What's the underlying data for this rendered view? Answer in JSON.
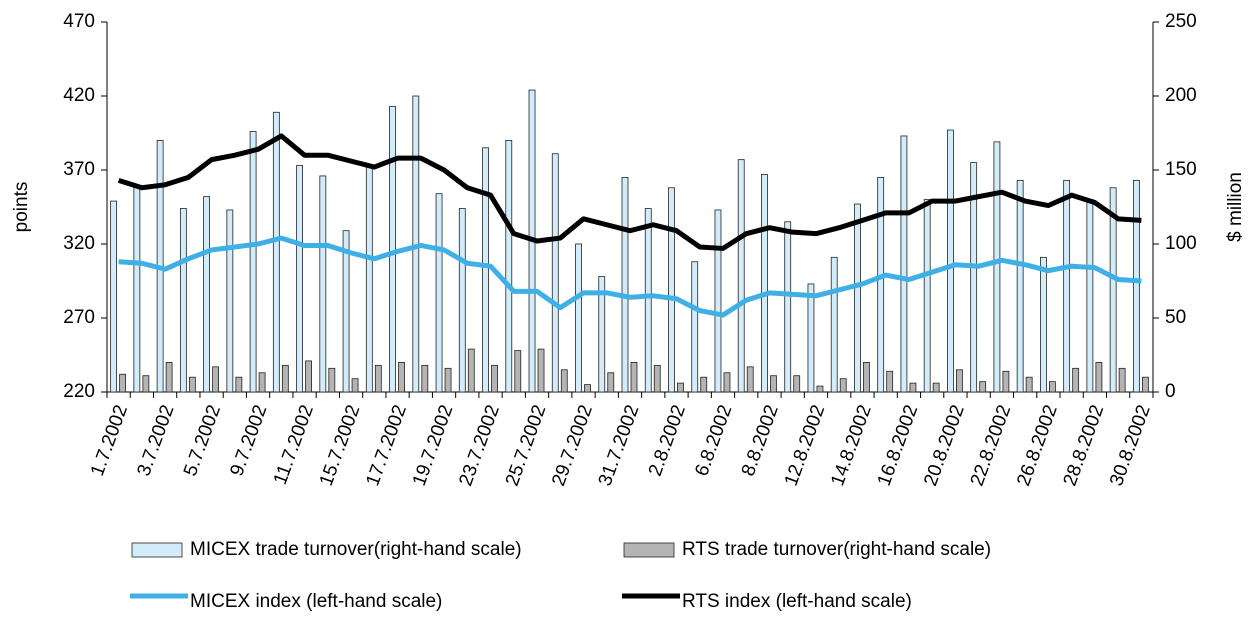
{
  "chart_data": {
    "type": "bar",
    "y_label": "points",
    "y2_label": "$ million",
    "categories": [
      "1.7.2002",
      null,
      "3.7.2002",
      null,
      "5.7.2002",
      null,
      "9.7.2002",
      null,
      "11.7.2002",
      null,
      "15.7.2002",
      null,
      "17.7.2002",
      null,
      "19.7.2002",
      null,
      "23.7.2002",
      null,
      "25.7.2002",
      null,
      "29.7.2002",
      null,
      "31.7.2002",
      null,
      "2.8.2002",
      null,
      "6.8.2002",
      null,
      "8.8.2002",
      null,
      "12.8.2002",
      null,
      "14.8.2002",
      null,
      "16.8.2002",
      null,
      "20.8.2002",
      null,
      "22.8.2002",
      null,
      "26.8.2002",
      null,
      "28.8.2002",
      null,
      "30.8.2002"
    ],
    "ylim": [
      220,
      470
    ],
    "yticks": [
      220,
      270,
      320,
      370,
      420,
      470
    ],
    "y2lim": [
      0,
      250
    ],
    "y2ticks": [
      0,
      50,
      100,
      150,
      200,
      250
    ],
    "series": [
      {
        "name": "MICEX trade turnover(right-hand scale)",
        "type": "bar",
        "axis": "y2",
        "color": "#d3ecfa",
        "values": [
          129,
          139,
          170,
          124,
          132,
          123,
          176,
          189,
          153,
          146,
          109,
          153,
          193,
          200,
          134,
          124,
          165,
          170,
          204,
          161,
          100,
          78,
          145,
          124,
          138,
          88,
          123,
          157,
          147,
          115,
          73,
          91,
          127,
          145,
          173,
          130,
          177,
          155,
          169,
          143,
          91,
          143,
          130,
          138,
          143
        ]
      },
      {
        "name": "RTS trade turnover(right-hand scale)",
        "type": "bar",
        "axis": "y2",
        "color": "#b4b4b4",
        "values": [
          12,
          11,
          20,
          10,
          17,
          10,
          13,
          18,
          21,
          16,
          9,
          18,
          20,
          18,
          16,
          29,
          18,
          28,
          29,
          15,
          5,
          13,
          20,
          18,
          6,
          10,
          13,
          17,
          11,
          11,
          4,
          9,
          20,
          14,
          6,
          6,
          15,
          7,
          14,
          10,
          7,
          16,
          20,
          16,
          10
        ]
      },
      {
        "name": "MICEX index (left-hand scale)",
        "type": "line",
        "color": "#3fb0e6",
        "values": [
          308,
          307,
          303,
          310,
          316,
          318,
          320,
          324,
          319,
          319,
          314,
          310,
          315,
          319,
          316,
          307,
          305,
          288,
          288,
          277,
          287,
          287,
          284,
          285,
          283,
          275,
          272,
          282,
          287,
          286,
          285,
          289,
          293,
          299,
          296,
          301,
          306,
          305,
          309,
          306,
          302,
          305,
          304,
          296,
          295
        ]
      },
      {
        "name": "RTS index (left-hand scale)",
        "type": "line",
        "color": "#000000",
        "values": [
          363,
          358,
          360,
          365,
          377,
          380,
          384,
          393,
          380,
          380,
          376,
          372,
          378,
          378,
          370,
          358,
          353,
          327,
          322,
          324,
          337,
          333,
          329,
          333,
          329,
          318,
          317,
          327,
          331,
          328,
          327,
          331,
          336,
          341,
          341,
          349,
          349,
          352,
          355,
          349,
          346,
          353,
          348,
          337,
          336
        ]
      }
    ]
  }
}
